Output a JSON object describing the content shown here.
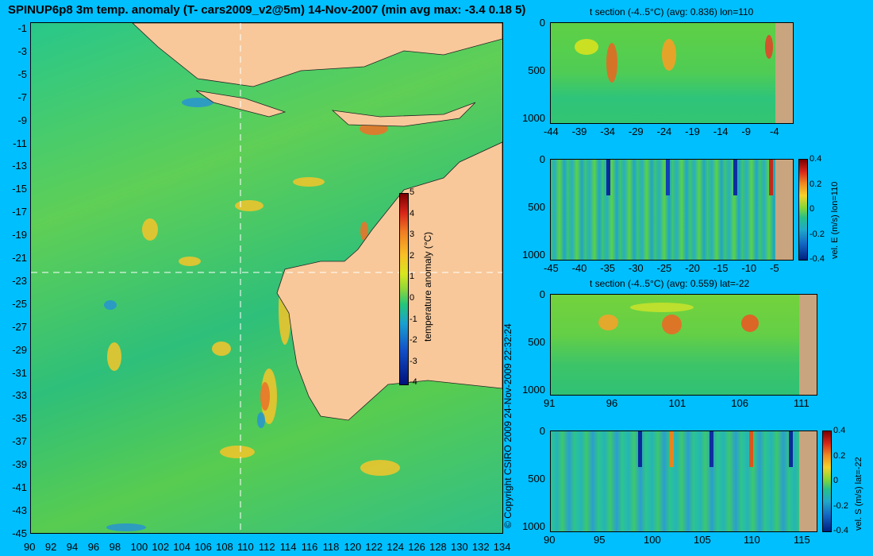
{
  "title": "SPINUP6p8 3m temp. anomaly (T- cars2009_v2@5m) 14-Nov-2007 (min avg max: -3.4 0.18 5)",
  "map": {
    "lat_ticks": [
      "-1",
      "-3",
      "-5",
      "-7",
      "-9",
      "-11",
      "-13",
      "-15",
      "-17",
      "-19",
      "-21",
      "-23",
      "-25",
      "-27",
      "-29",
      "-31",
      "-33",
      "-35",
      "-37",
      "-39",
      "-41",
      "-43",
      "-45"
    ],
    "lon_ticks": [
      "90",
      "92",
      "94",
      "96",
      "98",
      "100",
      "102",
      "104",
      "106",
      "108",
      "110",
      "112",
      "114",
      "116",
      "118",
      "120",
      "122",
      "124",
      "126",
      "128",
      "130",
      "132",
      "134"
    ],
    "colorbar": {
      "label": "temperature anomaly (°C)",
      "ticks": [
        "5",
        "4",
        "3",
        "2",
        "1",
        "0",
        "-1",
        "-2",
        "-3",
        "-4"
      ]
    }
  },
  "copyright": "© Copyright CSIRO 2009   24-Nov-2009 22:32:24",
  "panels": [
    {
      "title": "t section (-4..5°C) (avg: 0.836) lon=110",
      "y_ticks": [
        "0",
        "500",
        "1000"
      ],
      "x_ticks": [
        "-44",
        "-39",
        "-34",
        "-29",
        "-24",
        "-19",
        "-14",
        "-9",
        "-4"
      ]
    },
    {
      "title": "",
      "y_ticks": [
        "0",
        "500",
        "1000"
      ],
      "x_ticks": [
        "-45",
        "-40",
        "-35",
        "-30",
        "-25",
        "-20",
        "-15",
        "-10",
        "-5"
      ],
      "colorbar": {
        "label": "vel. E (m/s) lon=110",
        "ticks": [
          "0.4",
          "0.2",
          "0",
          "-0.2",
          "-0.4"
        ]
      }
    },
    {
      "title": "t section (-4..5°C) (avg: 0.559) lat=-22",
      "y_ticks": [
        "0",
        "500",
        "1000"
      ],
      "x_ticks": [
        "91",
        "96",
        "101",
        "106",
        "111"
      ]
    },
    {
      "title": "",
      "y_ticks": [
        "0",
        "500",
        "1000"
      ],
      "x_ticks": [
        "90",
        "95",
        "100",
        "105",
        "110",
        "115"
      ],
      "colorbar": {
        "label": "vel. S (m/s) lat=-22",
        "ticks": [
          "0.4",
          "0.2",
          "0",
          "-0.2",
          "-0.4"
        ]
      }
    }
  ]
}
